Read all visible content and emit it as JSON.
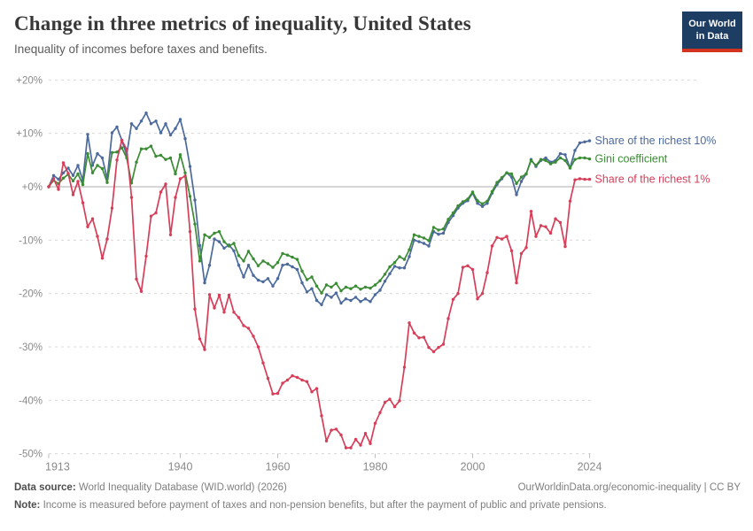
{
  "header": {
    "title": "Change in three metrics of inequality, United States",
    "subtitle": "Inequality of incomes before taxes and benefits.",
    "logo_line1": "Our World",
    "logo_line2": "in Data",
    "logo_bg_color": "#1d3d63",
    "logo_bar_color": "#d2341f"
  },
  "chart_data": {
    "type": "line",
    "title": "Change in three metrics of inequality, United States",
    "xlabel": "",
    "ylabel": "",
    "unit": "%",
    "grid": "horizontal-dashed",
    "zero_line": true,
    "legend_position": "right-of-line-ends",
    "ylim": [
      -50,
      20
    ],
    "yticks": [
      20,
      10,
      0,
      -10,
      -20,
      -30,
      -40,
      -50
    ],
    "ytick_labels": [
      "+20%",
      "+10%",
      "+0%",
      "-10%",
      "-20%",
      "-30%",
      "-40%",
      "-50%"
    ],
    "xticks": [
      1913,
      1940,
      1960,
      1980,
      2000,
      2024
    ],
    "x_range": [
      1913,
      2024
    ],
    "x": [
      1913,
      1914,
      1915,
      1916,
      1917,
      1918,
      1919,
      1920,
      1921,
      1922,
      1923,
      1924,
      1925,
      1926,
      1927,
      1928,
      1929,
      1930,
      1931,
      1932,
      1933,
      1934,
      1935,
      1936,
      1937,
      1938,
      1939,
      1940,
      1941,
      1942,
      1943,
      1944,
      1945,
      1946,
      1947,
      1948,
      1949,
      1950,
      1951,
      1952,
      1953,
      1954,
      1955,
      1956,
      1957,
      1958,
      1959,
      1960,
      1961,
      1962,
      1963,
      1964,
      1965,
      1966,
      1967,
      1968,
      1969,
      1970,
      1971,
      1972,
      1973,
      1974,
      1975,
      1976,
      1977,
      1978,
      1979,
      1980,
      1981,
      1982,
      1983,
      1984,
      1985,
      1986,
      1987,
      1988,
      1989,
      1990,
      1991,
      1992,
      1993,
      1994,
      1995,
      1996,
      1997,
      1998,
      1999,
      2000,
      2001,
      2002,
      2003,
      2004,
      2005,
      2006,
      2007,
      2008,
      2009,
      2010,
      2011,
      2012,
      2013,
      2014,
      2015,
      2016,
      2017,
      2018,
      2019,
      2020,
      2021,
      2022,
      2023,
      2024
    ],
    "series": [
      {
        "name": "Share of the richest 10%",
        "color": "#4C6A9C",
        "values": [
          0.0,
          2.1,
          1.4,
          2.6,
          3.5,
          2.1,
          4.0,
          1.2,
          9.8,
          4.0,
          6.2,
          5.4,
          1.5,
          10.1,
          11.2,
          8.7,
          6.0,
          11.8,
          10.9,
          12.3,
          13.8,
          11.8,
          12.3,
          10.1,
          11.8,
          9.7,
          10.9,
          12.6,
          9.0,
          3.8,
          -2.5,
          -11.0,
          -18.0,
          -14.7,
          -9.8,
          -10.3,
          -11.5,
          -10.9,
          -12.0,
          -14.7,
          -16.9,
          -14.7,
          -16.6,
          -17.5,
          -17.8,
          -17.2,
          -18.6,
          -17.2,
          -14.7,
          -14.5,
          -15.0,
          -15.5,
          -18.0,
          -19.7,
          -19.1,
          -21.3,
          -22.1,
          -20.2,
          -20.7,
          -19.9,
          -21.8,
          -21.0,
          -21.3,
          -20.7,
          -21.5,
          -21.0,
          -21.5,
          -20.2,
          -19.4,
          -17.7,
          -16.3,
          -14.9,
          -15.2,
          -15.2,
          -13.1,
          -10.0,
          -10.3,
          -10.6,
          -11.1,
          -8.4,
          -8.9,
          -8.7,
          -6.7,
          -5.4,
          -4.0,
          -3.1,
          -2.6,
          -1.2,
          -3.1,
          -3.7,
          -3.1,
          -1.2,
          0.4,
          1.5,
          2.6,
          1.8,
          -1.5,
          1.0,
          2.4,
          5.1,
          3.8,
          4.9,
          5.4,
          4.6,
          4.9,
          6.2,
          6.0,
          3.5,
          6.8,
          8.2,
          8.4,
          8.6
        ]
      },
      {
        "name": "Gini coefficient",
        "color": "#3B8C35",
        "values": [
          0.0,
          1.2,
          0.6,
          1.6,
          2.3,
          1.1,
          2.4,
          0.4,
          6.2,
          2.6,
          4.0,
          3.4,
          0.8,
          6.4,
          6.5,
          7.3,
          5.4,
          0.7,
          4.6,
          7.1,
          7.1,
          7.6,
          5.7,
          5.9,
          5.1,
          5.4,
          2.4,
          6.0,
          2.6,
          -1.8,
          -7.0,
          -13.9,
          -9.0,
          -9.5,
          -8.7,
          -8.4,
          -10.3,
          -11.1,
          -10.6,
          -12.9,
          -13.9,
          -12.1,
          -13.5,
          -14.8,
          -13.9,
          -14.4,
          -15.1,
          -14.2,
          -12.5,
          -12.8,
          -13.2,
          -13.6,
          -15.8,
          -17.4,
          -16.9,
          -18.6,
          -19.9,
          -18.4,
          -18.8,
          -18.1,
          -19.5,
          -18.8,
          -19.1,
          -18.6,
          -19.2,
          -18.8,
          -19.0,
          -18.4,
          -17.6,
          -16.4,
          -15.0,
          -14.2,
          -13.1,
          -13.6,
          -11.8,
          -9.0,
          -9.3,
          -9.6,
          -10.1,
          -7.6,
          -8.1,
          -7.9,
          -6.1,
          -4.9,
          -3.6,
          -2.8,
          -2.3,
          -1.0,
          -2.6,
          -3.2,
          -2.7,
          -0.9,
          0.8,
          1.7,
          2.6,
          2.4,
          0.6,
          1.8,
          2.4,
          4.9,
          4.0,
          5.1,
          4.9,
          4.3,
          4.6,
          5.4,
          4.9,
          3.5,
          5.1,
          5.4,
          5.4,
          5.2
        ]
      },
      {
        "name": "Share of the richest 1%",
        "color": "#D63E59",
        "values": [
          0.0,
          1.5,
          -0.5,
          4.5,
          2.5,
          -1.5,
          1.0,
          -3.0,
          -7.5,
          -6.0,
          -9.3,
          -13.4,
          -9.8,
          -4.0,
          5.0,
          8.7,
          7.0,
          -2.0,
          -17.3,
          -19.6,
          -13.0,
          -5.5,
          -4.9,
          -1.0,
          0.5,
          -9.0,
          -2.0,
          1.5,
          2.0,
          -8.4,
          -22.9,
          -28.5,
          -30.5,
          -20.2,
          -22.7,
          -20.3,
          -23.5,
          -20.3,
          -23.5,
          -24.5,
          -26.0,
          -26.5,
          -28.0,
          -30.0,
          -33.0,
          -35.9,
          -38.8,
          -38.7,
          -36.8,
          -36.2,
          -35.4,
          -35.7,
          -36.2,
          -36.5,
          -38.4,
          -37.8,
          -42.9,
          -47.6,
          -45.6,
          -45.4,
          -46.5,
          -48.9,
          -48.9,
          -47.3,
          -48.4,
          -46.2,
          -48.1,
          -44.3,
          -42.3,
          -40.4,
          -39.8,
          -41.2,
          -40.1,
          -33.8,
          -25.5,
          -27.4,
          -28.3,
          -28.2,
          -30.1,
          -30.9,
          -30.1,
          -29.5,
          -24.7,
          -21.1,
          -20.0,
          -15.1,
          -14.8,
          -15.5,
          -21.0,
          -20.0,
          -16.1,
          -11.1,
          -9.5,
          -9.8,
          -9.3,
          -12.0,
          -18.0,
          -12.5,
          -11.4,
          -4.6,
          -9.3,
          -7.3,
          -7.5,
          -8.7,
          -6.0,
          -6.7,
          -11.2,
          -2.7,
          1.3,
          1.5,
          1.4,
          1.4
        ]
      }
    ]
  },
  "footer": {
    "source_label": "Data source:",
    "source_text": "World Inequality Database (WID.world) (2026)",
    "link": "OurWorldinData.org/economic-inequality | CC BY",
    "note_label": "Note:",
    "note_text": "Income is measured before payment of taxes and non-pension benefits, but after the payment of public and private pensions."
  }
}
